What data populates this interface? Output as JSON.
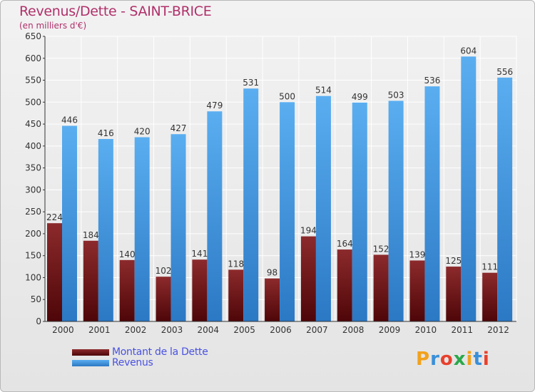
{
  "header": {
    "title": "Revenus/Dette - SAINT-BRICE",
    "subtitle": "(en milliers d'€)"
  },
  "legend": {
    "items": [
      {
        "label": "Montant de la Dette",
        "color": "#7a1216"
      },
      {
        "label": "Revenus",
        "color": "#3d97e0"
      }
    ]
  },
  "logo": {
    "text": "Proxiti",
    "letters": [
      {
        "char": "P",
        "color": "#f2a11c"
      },
      {
        "char": "r",
        "color": "#3a8fd8"
      },
      {
        "char": "o",
        "color": "#e8402c"
      },
      {
        "char": "x",
        "color": "#2ba84a"
      },
      {
        "char": "i",
        "color": "#f2a11c"
      },
      {
        "char": "t",
        "color": "#3a8fd8"
      },
      {
        "char": "i",
        "color": "#e8402c"
      }
    ]
  },
  "chart_data": {
    "type": "bar",
    "title": "Revenus/Dette - SAINT-BRICE",
    "subtitle": "(en milliers d'€)",
    "categories": [
      "2000",
      "2001",
      "2002",
      "2003",
      "2004",
      "2005",
      "2006",
      "2007",
      "2008",
      "2009",
      "2010",
      "2011",
      "2012"
    ],
    "series": [
      {
        "name": "Montant de la Dette",
        "color": "#7a1216",
        "values": [
          224,
          184,
          140,
          102,
          141,
          118,
          98,
          194,
          164,
          152,
          139,
          125,
          111
        ]
      },
      {
        "name": "Revenus",
        "color": "#3d97e0",
        "values": [
          446,
          416,
          420,
          427,
          479,
          531,
          500,
          514,
          499,
          503,
          536,
          604,
          556
        ]
      }
    ],
    "ylim": [
      0,
      650
    ],
    "yticks": [
      0,
      50,
      100,
      150,
      200,
      250,
      300,
      350,
      400,
      450,
      500,
      550,
      600,
      650
    ],
    "grid": true,
    "legend_position": "bottom-left"
  }
}
